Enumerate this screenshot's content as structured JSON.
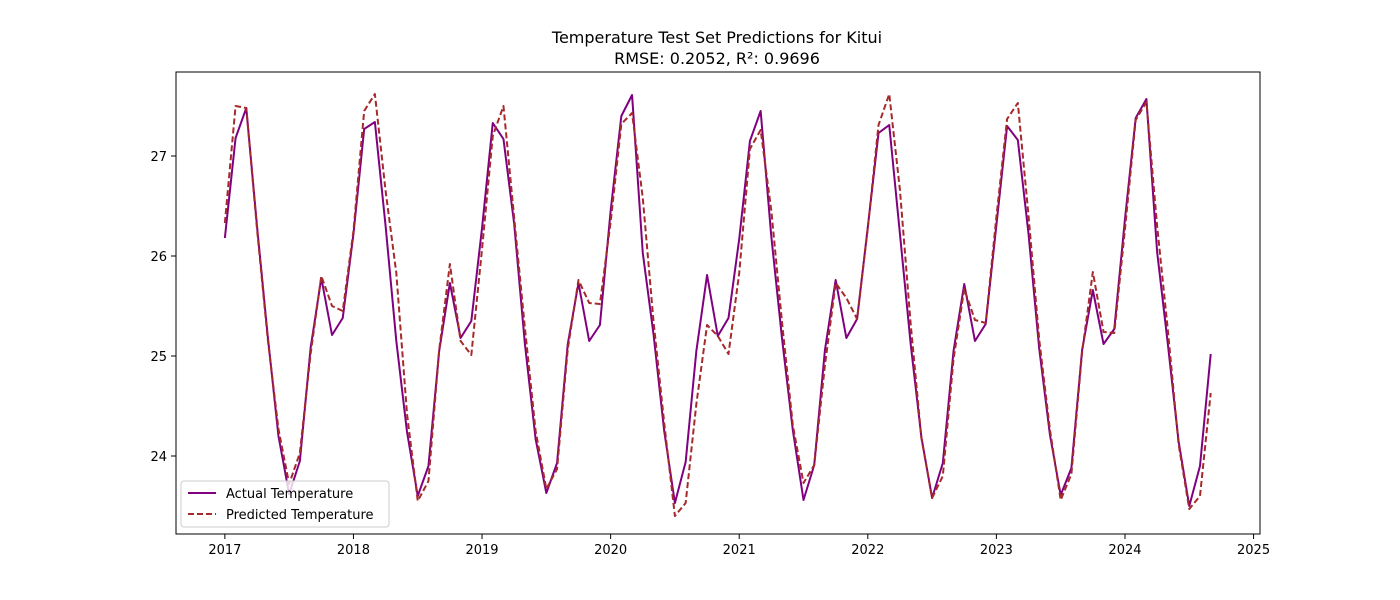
{
  "chart_data": {
    "type": "line",
    "title": "Temperature Test Set Predictions for Kitui",
    "subtitle": "RMSE: 0.2052, R²: 0.9696",
    "xlabel": "",
    "ylabel": "",
    "xlim": [
      2016.62,
      2025.05
    ],
    "ylim": [
      23.22,
      27.84
    ],
    "x_ticks": [
      2017,
      2018,
      2019,
      2020,
      2021,
      2022,
      2023,
      2024,
      2025
    ],
    "x_tick_labels": [
      "2017",
      "2018",
      "2019",
      "2020",
      "2021",
      "2022",
      "2023",
      "2024",
      "2025"
    ],
    "y_ticks": [
      24,
      25,
      26,
      27
    ],
    "y_tick_labels": [
      "24",
      "25",
      "26",
      "27"
    ],
    "grid": false,
    "legend_position": "lower-left",
    "start_year": 2017,
    "series": [
      {
        "name": "Actual Temperature",
        "color": "#800080",
        "style": "solid",
        "values": [
          26.18,
          27.18,
          27.48,
          26.3,
          25.2,
          24.2,
          23.62,
          23.95,
          25.08,
          25.78,
          25.21,
          25.38,
          26.22,
          27.27,
          27.34,
          26.3,
          25.15,
          24.24,
          23.6,
          23.9,
          25.05,
          25.73,
          25.18,
          25.35,
          26.28,
          27.33,
          27.17,
          26.32,
          25.12,
          24.17,
          23.63,
          23.93,
          25.12,
          25.73,
          25.15,
          25.31,
          26.45,
          27.4,
          27.61,
          26.03,
          25.22,
          24.25,
          23.53,
          23.94,
          25.05,
          25.81,
          25.2,
          25.38,
          26.17,
          27.15,
          27.45,
          26.19,
          25.17,
          24.26,
          23.56,
          23.91,
          25.06,
          25.76,
          25.18,
          25.37,
          26.29,
          27.23,
          27.31,
          26.22,
          25.12,
          24.19,
          23.58,
          23.93,
          25.05,
          25.72,
          25.15,
          25.32,
          26.31,
          27.3,
          27.16,
          26.22,
          25.07,
          24.21,
          23.61,
          23.88,
          25.06,
          25.66,
          25.12,
          25.27,
          26.37,
          27.38,
          27.57,
          26.04,
          25.12,
          24.15,
          23.5,
          23.9,
          25.02
        ]
      },
      {
        "name": "Predicted Temperature",
        "color": "#a52a2a",
        "style": "dashed",
        "values": [
          26.33,
          27.5,
          27.48,
          26.27,
          25.17,
          24.27,
          23.72,
          24.03,
          25.02,
          25.8,
          25.5,
          25.45,
          26.25,
          27.45,
          27.62,
          26.65,
          25.83,
          24.42,
          23.55,
          23.75,
          25.06,
          25.92,
          25.15,
          25.01,
          26.07,
          27.2,
          27.5,
          26.38,
          25.28,
          24.25,
          23.67,
          23.87,
          25.07,
          25.76,
          25.53,
          25.52,
          26.34,
          27.32,
          27.43,
          26.58,
          25.35,
          24.33,
          23.4,
          23.53,
          24.52,
          25.31,
          25.2,
          25.02,
          25.83,
          27.07,
          27.26,
          26.45,
          25.33,
          24.31,
          23.73,
          23.91,
          24.91,
          25.73,
          25.58,
          25.37,
          26.28,
          27.31,
          27.62,
          26.66,
          25.32,
          24.18,
          23.58,
          23.8,
          24.97,
          25.67,
          25.36,
          25.33,
          26.39,
          27.37,
          27.53,
          26.4,
          25.16,
          24.26,
          23.56,
          23.82,
          25.04,
          25.84,
          25.24,
          25.23,
          26.27,
          27.36,
          27.54,
          26.3,
          25.26,
          24.12,
          23.47,
          23.6,
          24.63
        ]
      }
    ]
  }
}
